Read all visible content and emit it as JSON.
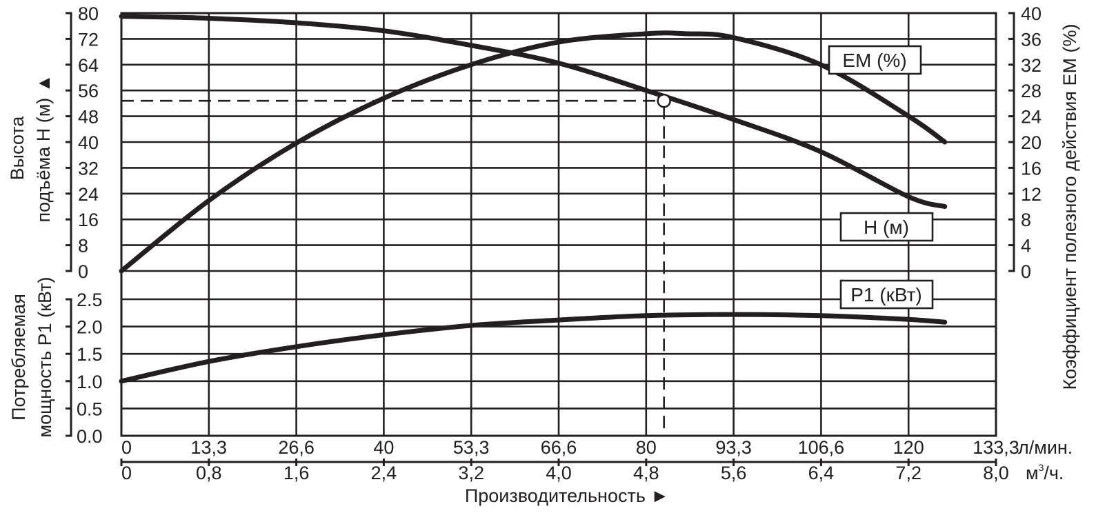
{
  "chart_data": {
    "type": "line",
    "title": "",
    "panels": [
      {
        "name": "upper",
        "series": [
          {
            "name": "H (м)",
            "axis": "left",
            "x": [
              0,
              13.3,
              26.6,
              40,
              53.3,
              66.6,
              80,
              93.3,
              106.6,
              120,
              125.5
            ],
            "values": [
              79,
              78.4,
              77,
              74.5,
              70,
              64.5,
              56,
              47,
              37,
              23,
              20
            ]
          },
          {
            "name": "EM (%)",
            "axis": "right",
            "x": [
              0,
              13.3,
              26.6,
              40,
              53.3,
              66.6,
              80,
              86,
              93.3,
              106.6,
              120,
              125.5
            ],
            "values": [
              0,
              10.9,
              19.8,
              26.8,
              32,
              35.5,
              36.8,
              36.8,
              36.2,
              32,
              24,
              20
            ]
          }
        ],
        "left_axis": {
          "label_line1": "Высота",
          "label_line2": "подъёма H (м) ▲",
          "ticks": [
            "80",
            "72",
            "64",
            "56",
            "48",
            "40",
            "32",
            "24",
            "16",
            "8",
            "0"
          ],
          "ylim": [
            0,
            80
          ]
        },
        "right_axis": {
          "label": "Коэффициент полезного действия EM (%)",
          "ticks": [
            "40",
            "36",
            "32",
            "28",
            "24",
            "20",
            "16",
            "12",
            "8",
            "4",
            "0"
          ],
          "ylim": [
            0,
            40
          ]
        },
        "operating_point": {
          "x": 82.7,
          "y": 52.8
        }
      },
      {
        "name": "lower",
        "series": [
          {
            "name": "P1 (кВт)",
            "axis": "left",
            "x": [
              0,
              13.3,
              26.6,
              40,
              53.3,
              66.6,
              80,
              93.3,
              106.6,
              120,
              125.5
            ],
            "values": [
              1.0,
              1.36,
              1.63,
              1.85,
              2.02,
              2.12,
              2.2,
              2.22,
              2.2,
              2.13,
              2.08
            ]
          }
        ],
        "left_axis": {
          "label_line1": "Потребляемая",
          "label_line2": "мощность P1 (кВт)",
          "ticks": [
            "2.5",
            "2.0",
            "1.5",
            "1.0",
            "0.5",
            "0.0"
          ],
          "ylim": [
            0,
            2.5
          ]
        }
      }
    ],
    "x_axis": {
      "primary_ticks": [
        "0",
        "13,3",
        "26,6",
        "40",
        "53,3",
        "66,6",
        "80",
        "93,3",
        "106,6",
        "120",
        "133,3"
      ],
      "primary_unit": "л/мин.",
      "secondary_ticks": [
        "0",
        "0,8",
        "1,6",
        "2,4",
        "3,2",
        "4,0",
        "4,8",
        "5,6",
        "6,4",
        "7,2",
        "8,0"
      ],
      "secondary_unit_base": "м",
      "secondary_unit_sup": "3",
      "secondary_unit_tail": "/ч.",
      "xlabel": "Производительность ►",
      "xlim": [
        0,
        133.3
      ]
    },
    "legend": {
      "em": "EM (%)",
      "h": "H (м)",
      "p1": "P1 (кВт)"
    },
    "grid": true
  }
}
